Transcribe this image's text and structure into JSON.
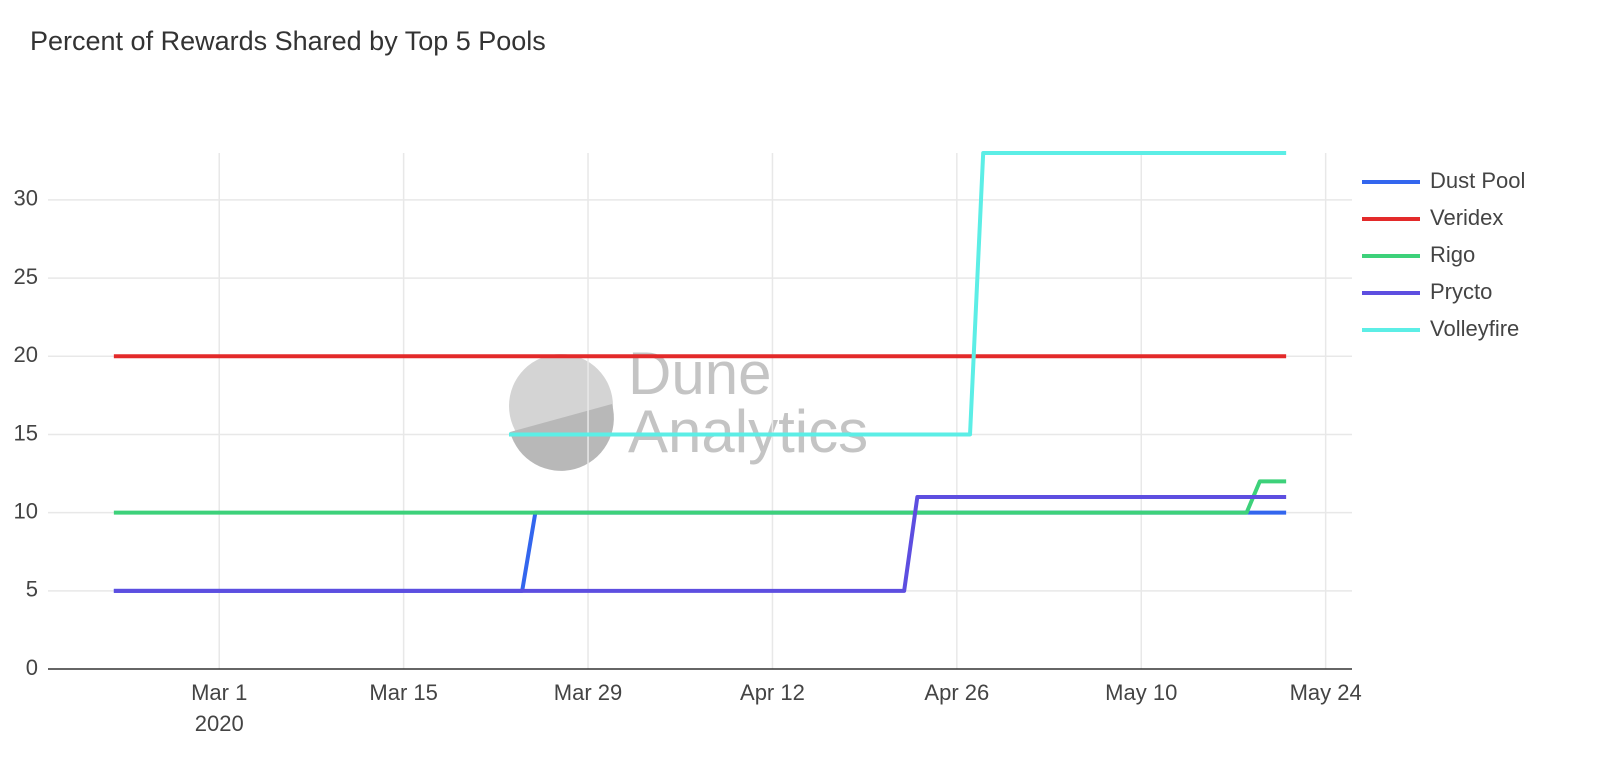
{
  "chart_data": {
    "type": "line",
    "title": "Percent of Rewards Shared by Top 5 Pools",
    "watermark": [
      "Dune",
      "Analytics"
    ],
    "xlim": [
      "2020-02-17",
      "2020-05-26"
    ],
    "xticks": [
      {
        "value": "2020-03-01",
        "label": "Mar 1"
      },
      {
        "value": "2020-03-15",
        "label": "Mar 15"
      },
      {
        "value": "2020-03-29",
        "label": "Mar 29"
      },
      {
        "value": "2020-04-12",
        "label": "Apr 12"
      },
      {
        "value": "2020-04-26",
        "label": "Apr 26"
      },
      {
        "value": "2020-05-10",
        "label": "May 10"
      },
      {
        "value": "2020-05-24",
        "label": "May 24"
      }
    ],
    "x_year_label": "2020",
    "ylim": [
      0,
      33
    ],
    "yticks": [
      0,
      5,
      10,
      15,
      20,
      25,
      30
    ],
    "grid": true,
    "legend": "right",
    "series": [
      {
        "name": "Dust Pool",
        "color": "#3366ee",
        "x": [
          "2020-02-22",
          "2020-03-24",
          "2020-03-25",
          "2020-05-21"
        ],
        "values": [
          5,
          5,
          10,
          10
        ]
      },
      {
        "name": "Veridex",
        "color": "#e32a2a",
        "x": [
          "2020-02-22",
          "2020-05-21"
        ],
        "values": [
          20,
          20
        ]
      },
      {
        "name": "Rigo",
        "color": "#3dd17a",
        "x": [
          "2020-02-22",
          "2020-05-18",
          "2020-05-19",
          "2020-05-21"
        ],
        "values": [
          10,
          10,
          12,
          12
        ]
      },
      {
        "name": "Prycto",
        "color": "#5d4ee0",
        "x": [
          "2020-02-22",
          "2020-04-22",
          "2020-04-23",
          "2020-05-21"
        ],
        "values": [
          5,
          5,
          11,
          11
        ]
      },
      {
        "name": "Volleyfire",
        "color": "#5ceee6",
        "x": [
          "2020-03-23",
          "2020-04-27",
          "2020-04-28",
          "2020-05-21"
        ],
        "values": [
          15,
          15,
          33,
          33
        ]
      }
    ]
  }
}
